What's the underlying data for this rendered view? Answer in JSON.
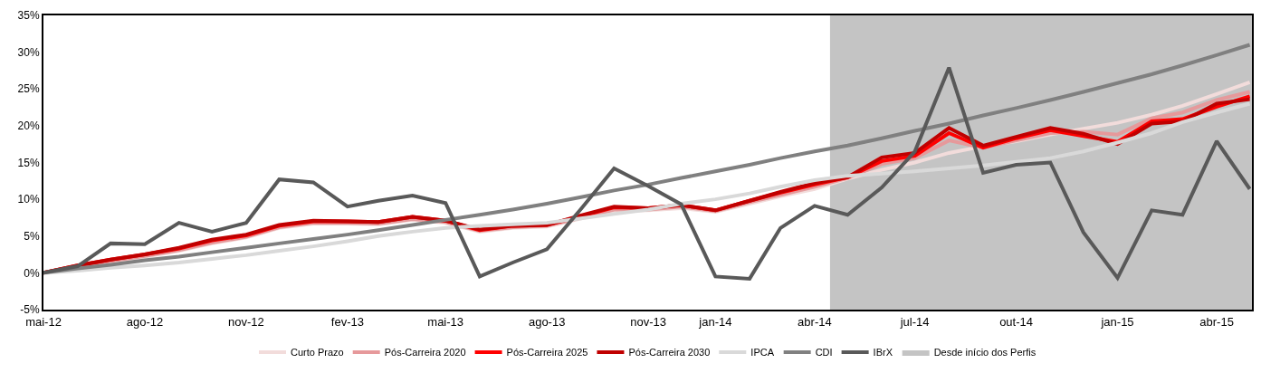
{
  "chart_data": {
    "type": "line",
    "x": [
      "2012-05",
      "2012-06",
      "2012-07",
      "2012-08",
      "2012-09",
      "2012-10",
      "2012-11",
      "2012-12",
      "2013-01",
      "2013-02",
      "2013-03",
      "2013-04",
      "2013-05",
      "2013-06",
      "2013-07",
      "2013-08",
      "2013-09",
      "2013-10",
      "2013-11",
      "2013-12",
      "2014-01",
      "2014-02",
      "2014-03",
      "2014-04",
      "2014-05",
      "2014-06",
      "2014-07",
      "2014-08",
      "2014-09",
      "2014-10",
      "2014-11",
      "2014-12",
      "2015-01",
      "2015-02",
      "2015-03",
      "2015-04",
      "2015-05"
    ],
    "series": [
      {
        "name": "Curto Prazo",
        "color": "#f2dcdb",
        "values": [
          0,
          0.8,
          1.5,
          2.2,
          3.0,
          4.0,
          4.8,
          6.1,
          6.7,
          6.7,
          6.6,
          7.2,
          6.8,
          5.6,
          6.1,
          6.3,
          7.4,
          8.4,
          8.5,
          8.8,
          8.3,
          9.4,
          10.4,
          11.4,
          12.8,
          14.0,
          15.0,
          16.3,
          17.2,
          17.9,
          18.8,
          19.6,
          20.4,
          21.5,
          22.7,
          24.3,
          25.9
        ]
      },
      {
        "name": "Pós-Carreira 2020",
        "color": "#e6999b",
        "values": [
          0,
          0.9,
          1.6,
          2.3,
          3.1,
          4.1,
          4.9,
          6.2,
          6.8,
          6.8,
          6.7,
          7.3,
          6.9,
          5.7,
          6.2,
          6.4,
          7.5,
          8.6,
          8.6,
          9.0,
          8.4,
          9.6,
          10.6,
          11.7,
          12.9,
          14.8,
          15.6,
          18.0,
          17.0,
          18.0,
          19.0,
          19.2,
          18.8,
          21.0,
          21.8,
          23.5,
          24.6
        ]
      },
      {
        "name": "Pós-Carreira 2025",
        "color": "#ff0000",
        "values": [
          0,
          1.0,
          1.8,
          2.5,
          3.3,
          4.4,
          5.1,
          6.4,
          7.0,
          7.0,
          6.9,
          7.6,
          7.1,
          5.8,
          6.4,
          6.5,
          7.7,
          8.9,
          8.8,
          9.2,
          8.5,
          9.8,
          10.9,
          12.0,
          13.0,
          15.2,
          15.9,
          19.0,
          17.0,
          18.3,
          19.4,
          18.6,
          17.8,
          20.6,
          20.9,
          22.6,
          24.0
        ]
      },
      {
        "name": "Pós-Carreira 2030",
        "color": "#c00000",
        "values": [
          0,
          1.0,
          1.8,
          2.5,
          3.4,
          4.5,
          5.2,
          6.5,
          7.1,
          7.0,
          6.9,
          7.6,
          7.1,
          5.9,
          6.4,
          6.5,
          7.8,
          9.0,
          8.8,
          9.2,
          8.5,
          9.8,
          11.0,
          12.2,
          13.0,
          15.7,
          16.3,
          19.7,
          17.3,
          18.5,
          19.7,
          18.9,
          17.5,
          20.3,
          20.6,
          23.0,
          23.6
        ]
      },
      {
        "name": "IPCA",
        "color": "#d9d9d9",
        "values": [
          0,
          0.3,
          0.7,
          1.0,
          1.4,
          1.9,
          2.4,
          3.0,
          3.6,
          4.3,
          5.0,
          5.6,
          6.1,
          6.4,
          6.6,
          6.8,
          7.4,
          8.0,
          8.6,
          9.4,
          10.0,
          10.8,
          11.7,
          12.6,
          13.2,
          13.5,
          13.8,
          14.2,
          14.6,
          15.1,
          15.6,
          16.5,
          17.7,
          19.0,
          20.5,
          21.8,
          23.0
        ]
      },
      {
        "name": "CDI",
        "color": "#808080",
        "values": [
          0,
          0.6,
          1.1,
          1.7,
          2.2,
          2.8,
          3.4,
          4.0,
          4.6,
          5.2,
          5.8,
          6.5,
          7.2,
          7.9,
          8.6,
          9.4,
          10.3,
          11.2,
          12.0,
          12.9,
          13.8,
          14.7,
          15.6,
          16.5,
          17.3,
          18.3,
          19.3,
          20.3,
          21.4,
          22.4,
          23.5,
          24.6,
          25.8,
          27.0,
          28.2,
          29.6,
          31.0
        ]
      },
      {
        "name": "IBrX",
        "color": "#595959",
        "values": [
          0,
          0.9,
          4.0,
          3.9,
          6.8,
          5.6,
          6.8,
          12.7,
          12.3,
          9.0,
          9.8,
          10.5,
          9.5,
          -0.5,
          1.4,
          3.2,
          8.7,
          14.2,
          11.8,
          9.3,
          -0.5,
          -0.8,
          6.1,
          9.1,
          7.9,
          11.6,
          16.5,
          27.9,
          13.6,
          14.7,
          15.0,
          5.5,
          -0.7,
          8.5,
          7.9,
          17.9,
          11.4
        ]
      }
    ],
    "bands": [
      {
        "axis": "x",
        "from": "2014-04-15",
        "to": "2015-05-03",
        "label": "Desde início dos Perfis",
        "color": "#c4c4c4"
      }
    ],
    "xlim": [
      "2012-05-01",
      "2015-05-03"
    ],
    "xticks": [
      {
        "value": "2012-05-01",
        "label": "mai-12"
      },
      {
        "value": "2012-08-01",
        "label": "ago-12"
      },
      {
        "value": "2012-11-01",
        "label": "nov-12"
      },
      {
        "value": "2013-02-01",
        "label": "fev-13"
      },
      {
        "value": "2013-05-01",
        "label": "mai-13"
      },
      {
        "value": "2013-08-01",
        "label": "ago-13"
      },
      {
        "value": "2013-11-01",
        "label": "nov-13"
      },
      {
        "value": "2014-01-01",
        "label": "jan-14"
      },
      {
        "value": "2014-04-01",
        "label": "abr-14"
      },
      {
        "value": "2014-07-01",
        "label": "jul-14"
      },
      {
        "value": "2014-10-01",
        "label": "out-14"
      },
      {
        "value": "2015-01-01",
        "label": "jan-15"
      },
      {
        "value": "2015-04-01",
        "label": "abr-15"
      }
    ],
    "ylim": [
      -5,
      35
    ],
    "yticks": [
      {
        "value": -5,
        "label": "-5%"
      },
      {
        "value": 0,
        "label": "0%"
      },
      {
        "value": 5,
        "label": "5%"
      },
      {
        "value": 10,
        "label": "10%"
      },
      {
        "value": 15,
        "label": "15%"
      },
      {
        "value": 20,
        "label": "20%"
      },
      {
        "value": 25,
        "label": "25%"
      },
      {
        "value": 30,
        "label": "30%"
      },
      {
        "value": 35,
        "label": "35%"
      }
    ],
    "legend": "bottom",
    "marker": "none",
    "line_style": "solid"
  }
}
